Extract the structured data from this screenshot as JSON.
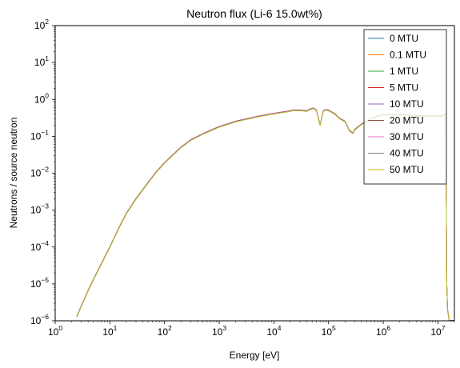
{
  "chart_data": {
    "type": "line",
    "title": "Neutron flux (Li-6 15.0wt%)",
    "xlabel": "Energy [eV]",
    "ylabel": "Neutrons / source neutron",
    "xscale": "log",
    "yscale": "log",
    "xlim": [
      1,
      20000000
    ],
    "ylim": [
      1e-06,
      100
    ],
    "x_ticks": [
      {
        "value": 1,
        "base": "10",
        "exp": "0"
      },
      {
        "value": 10,
        "base": "10",
        "exp": "1"
      },
      {
        "value": 100,
        "base": "10",
        "exp": "2"
      },
      {
        "value": 1000,
        "base": "10",
        "exp": "3"
      },
      {
        "value": 10000,
        "base": "10",
        "exp": "4"
      },
      {
        "value": 100000,
        "base": "10",
        "exp": "5"
      },
      {
        "value": 1000000,
        "base": "10",
        "exp": "6"
      },
      {
        "value": 10000000,
        "base": "10",
        "exp": "7"
      }
    ],
    "y_ticks": [
      {
        "value": 1e-06,
        "base": "10",
        "exp": "−6"
      },
      {
        "value": 1e-05,
        "base": "10",
        "exp": "−5"
      },
      {
        "value": 0.0001,
        "base": "10",
        "exp": "−4"
      },
      {
        "value": 0.001,
        "base": "10",
        "exp": "−3"
      },
      {
        "value": 0.01,
        "base": "10",
        "exp": "−2"
      },
      {
        "value": 0.1,
        "base": "10",
        "exp": "−1"
      },
      {
        "value": 1,
        "base": "10",
        "exp": "0"
      },
      {
        "value": 10,
        "base": "10",
        "exp": "1"
      },
      {
        "value": 100,
        "base": "10",
        "exp": "2"
      }
    ],
    "grid": false,
    "legend_position": "top-right",
    "x": [
      2.5,
      3,
      4,
      5,
      7,
      10,
      15,
      20,
      30,
      50,
      70,
      100,
      200,
      300,
      500,
      1000,
      2000,
      5000,
      10000,
      20000,
      23000,
      25000,
      27000,
      32000,
      40000,
      47000,
      50000,
      53000,
      60000,
      70000,
      80000,
      90000,
      100000,
      130000,
      160000,
      200000,
      240000,
      280000,
      300000,
      400000,
      600000,
      800000,
      1000000,
      2000000,
      3000000,
      5000000,
      7000000,
      10000000,
      12000000,
      13500000,
      14000000,
      14500000,
      15000000,
      16000000,
      18000000,
      20000000
    ],
    "base_values": [
      1.3e-06,
      2.5e-06,
      6.5e-06,
      1.3e-05,
      3.5e-05,
      0.0001,
      0.00035,
      0.0008,
      0.002,
      0.0055,
      0.0105,
      0.019,
      0.05,
      0.078,
      0.115,
      0.18,
      0.25,
      0.34,
      0.41,
      0.48,
      0.51,
      0.5,
      0.5,
      0.5,
      0.48,
      0.55,
      0.56,
      0.57,
      0.5,
      0.2,
      0.48,
      0.52,
      0.5,
      0.4,
      0.3,
      0.25,
      0.14,
      0.12,
      0.15,
      0.21,
      0.3,
      0.35,
      0.38,
      0.38,
      0.37,
      0.35,
      0.35,
      0.35,
      0.35,
      0.4,
      0.2,
      1e-05,
      2e-06,
      1e-06,
      1e-06,
      1e-06
    ],
    "series": [
      {
        "name": "0 MTU",
        "color": "#1f77b4",
        "scale": 1.0
      },
      {
        "name": "0.1 MTU",
        "color": "#ff7f0e",
        "scale": 1.01
      },
      {
        "name": "1 MTU",
        "color": "#2ca02c",
        "scale": 1.02
      },
      {
        "name": "5 MTU",
        "color": "#d62728",
        "scale": 1.03
      },
      {
        "name": "10 MTU",
        "color": "#9467bd",
        "scale": 1.02
      },
      {
        "name": "20 MTU",
        "color": "#8c564b",
        "scale": 1.01
      },
      {
        "name": "30 MTU",
        "color": "#e377c2",
        "scale": 1.0
      },
      {
        "name": "40 MTU",
        "color": "#7f7f7f",
        "scale": 0.99
      },
      {
        "name": "50 MTU",
        "color": "#bcbd22",
        "scale": 0.98
      }
    ]
  }
}
